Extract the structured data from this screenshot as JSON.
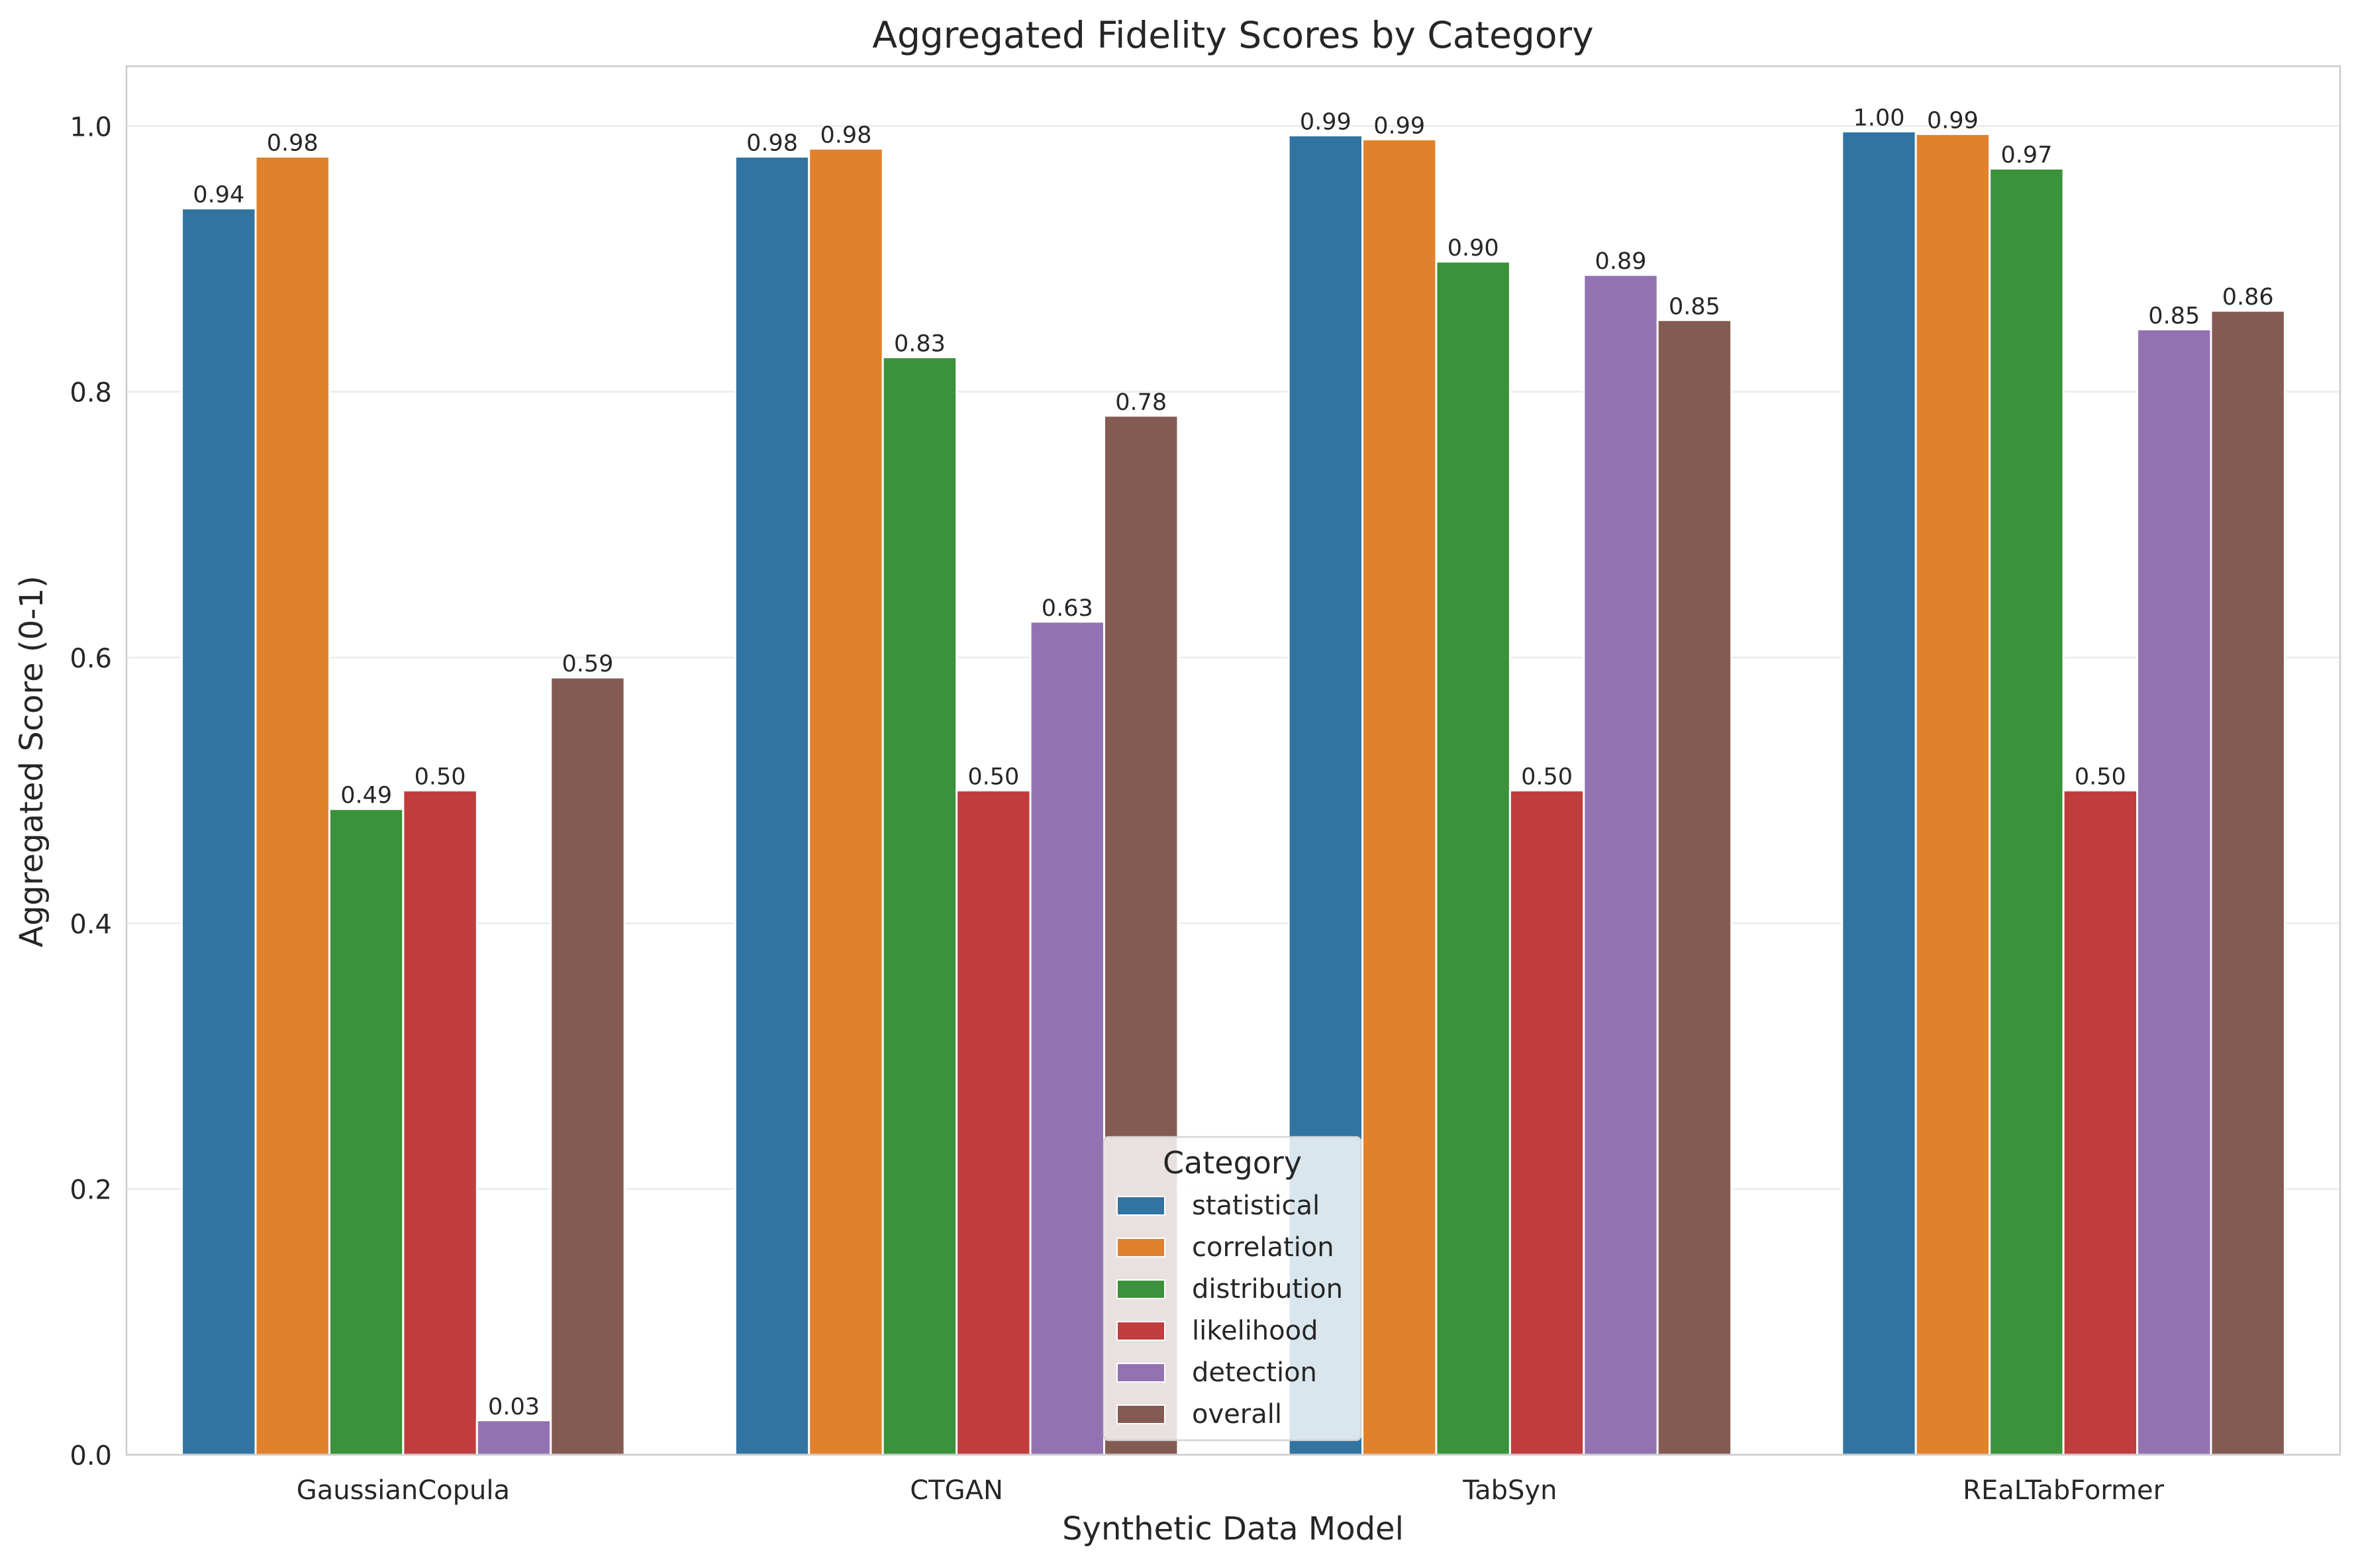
{
  "chart_data": {
    "type": "bar",
    "title": "Aggregated Fidelity Scores by Category",
    "xlabel": "Synthetic Data Model",
    "ylabel": "Aggregated Score (0-1)",
    "categories": [
      "GaussianCopula",
      "CTGAN",
      "TabSyn",
      "REaLTabFormer"
    ],
    "series": [
      {
        "name": "statistical",
        "color": "#3274a1",
        "values": [
          0.938,
          0.977,
          0.993,
          0.996
        ]
      },
      {
        "name": "correlation",
        "color": "#e1812c",
        "values": [
          0.977,
          0.983,
          0.99,
          0.994
        ]
      },
      {
        "name": "distribution",
        "color": "#3a923a",
        "values": [
          0.486,
          0.826,
          0.898,
          0.968
        ]
      },
      {
        "name": "likelihood",
        "color": "#c03d3e",
        "values": [
          0.5,
          0.5,
          0.5,
          0.5
        ]
      },
      {
        "name": "detection",
        "color": "#9372b2",
        "values": [
          0.026,
          0.627,
          0.888,
          0.847
        ]
      },
      {
        "name": "overall",
        "color": "#845b53",
        "values": [
          0.585,
          0.782,
          0.854,
          0.861
        ]
      }
    ],
    "data_labels": [
      [
        "0.94",
        "0.98",
        "0.49",
        "0.50",
        "0.03",
        "0.59"
      ],
      [
        "0.98",
        "0.98",
        "0.83",
        "0.50",
        "0.63",
        "0.78"
      ],
      [
        "0.99",
        "0.99",
        "0.90",
        "0.50",
        "0.89",
        "0.85"
      ],
      [
        "1.00",
        "0.99",
        "0.97",
        "0.50",
        "0.85",
        "0.86"
      ]
    ],
    "ylim": [
      0,
      1.045
    ],
    "yticks": [
      0.0,
      0.2,
      0.4,
      0.6,
      0.8,
      1.0
    ],
    "ytick_labels": [
      "0.0",
      "0.2",
      "0.4",
      "0.6",
      "0.8",
      "1.0"
    ],
    "grid": true,
    "legend": {
      "title": "Category",
      "placement": "bottom-center"
    }
  }
}
